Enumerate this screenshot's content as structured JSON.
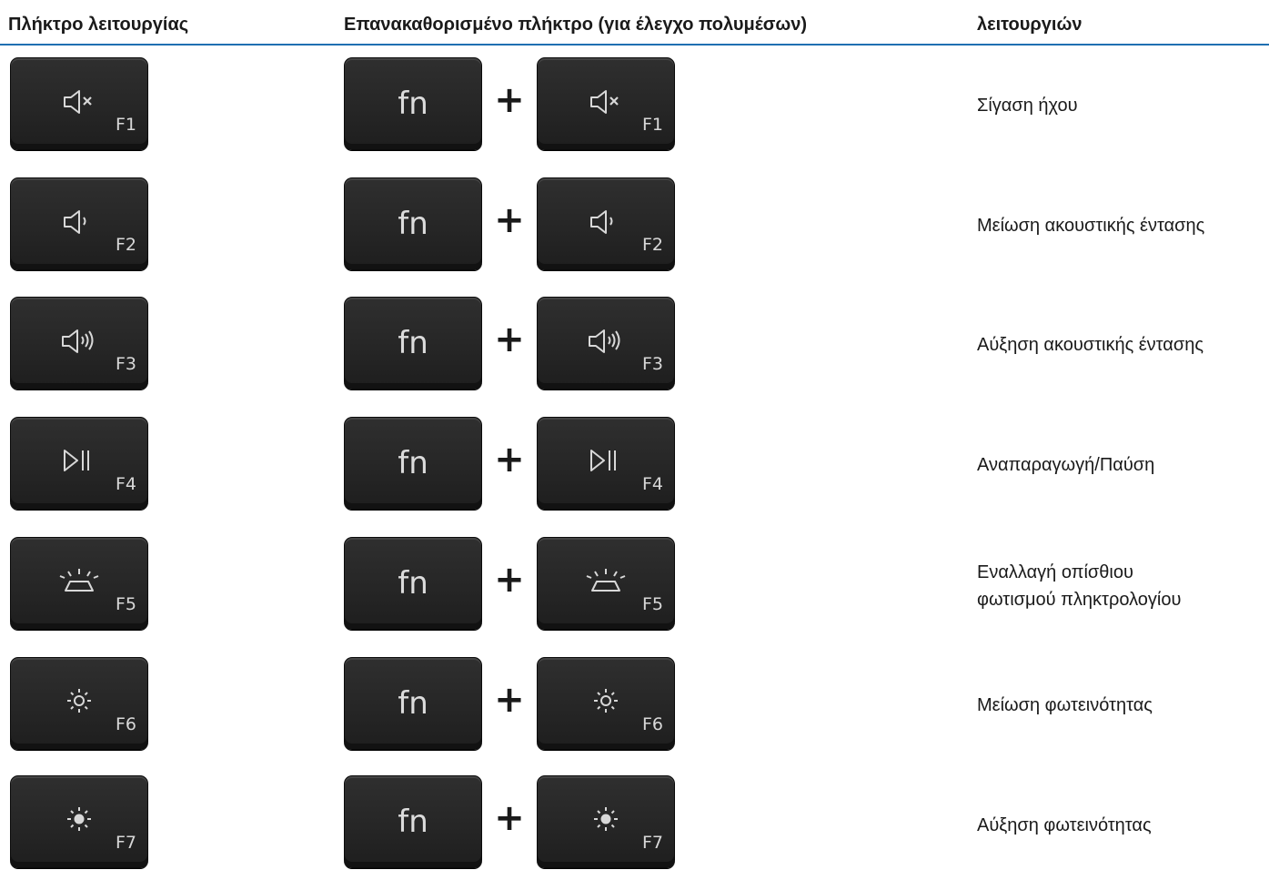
{
  "header": {
    "col_function_key": "Πλήκτρο λειτουργίας",
    "col_redefined_key": "Επανακαθορισμένο πλήκτρο (για έλεγχο πολυμέσων)",
    "col_behavior": "λειτουργιών"
  },
  "fn_label": "fn",
  "plus_label": "+",
  "accent_color": "#1f6fb2",
  "rows": [
    {
      "key": "F1",
      "icon": "mute-icon",
      "desc_1": "Σίγαση ήχου",
      "desc_2": ""
    },
    {
      "key": "F2",
      "icon": "volume-down-icon",
      "desc_1": "Μείωση ακουστικής έντασης",
      "desc_2": ""
    },
    {
      "key": "F3",
      "icon": "volume-up-icon",
      "desc_1": "Αύξηση ακουστικής έντασης",
      "desc_2": ""
    },
    {
      "key": "F4",
      "icon": "play-pause-icon",
      "desc_1": "Αναπαραγωγή/Παύση",
      "desc_2": ""
    },
    {
      "key": "F5",
      "icon": "keyboard-backlight-icon",
      "desc_1": "Εναλλαγή οπίσθιου",
      "desc_2": "φωτισμού πληκτρολογίου"
    },
    {
      "key": "F6",
      "icon": "brightness-down-icon",
      "desc_1": "Μείωση φωτεινότητας",
      "desc_2": ""
    },
    {
      "key": "F7",
      "icon": "brightness-up-icon",
      "desc_1": "Αύξηση φωτεινότητας",
      "desc_2": ""
    }
  ]
}
